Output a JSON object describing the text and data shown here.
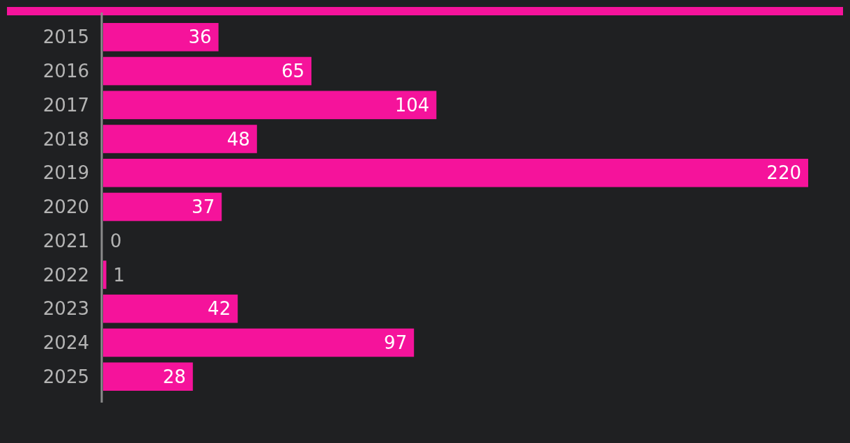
{
  "chart_data": {
    "type": "bar",
    "orientation": "horizontal",
    "categories": [
      "2015",
      "2016",
      "2017",
      "2018",
      "2019",
      "2020",
      "2021",
      "2022",
      "2023",
      "2024",
      "2025"
    ],
    "values": [
      36,
      65,
      104,
      48,
      220,
      37,
      0,
      1,
      42,
      97,
      28
    ],
    "color": "#f5139b",
    "data_labels": true
  }
}
